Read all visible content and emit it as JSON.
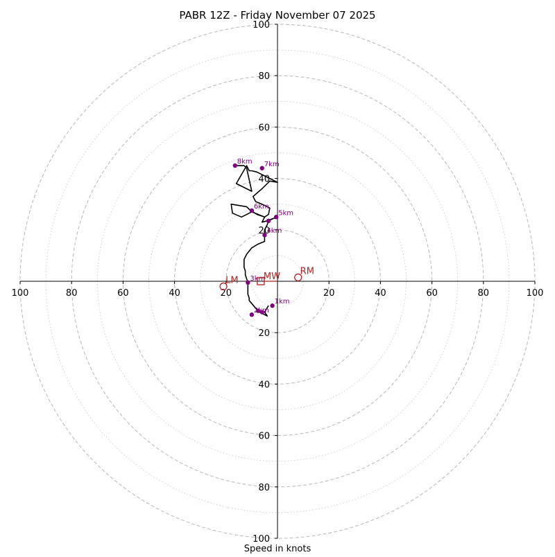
{
  "chart_data": {
    "type": "hodograph",
    "title": "PABR 12Z - Friday November 07 2025",
    "xlabel": "Speed in knots",
    "units": "knots",
    "range": [
      -100,
      100
    ],
    "rings_dashed": [
      20,
      40,
      60,
      80,
      100
    ],
    "rings_dotted": [
      10,
      30,
      50,
      70,
      90
    ],
    "x_tick_labels": [
      {
        "value": -100,
        "label": "100"
      },
      {
        "value": -80,
        "label": "80"
      },
      {
        "value": -60,
        "label": "60"
      },
      {
        "value": -40,
        "label": "40"
      },
      {
        "value": -20,
        "label": "20"
      },
      {
        "value": 20,
        "label": "20"
      },
      {
        "value": 40,
        "label": "40"
      },
      {
        "value": 60,
        "label": "60"
      },
      {
        "value": 80,
        "label": "80"
      },
      {
        "value": 100,
        "label": "100"
      }
    ],
    "y_tick_labels": [
      {
        "value": 100,
        "label": "100"
      },
      {
        "value": 80,
        "label": "80"
      },
      {
        "value": 60,
        "label": "60"
      },
      {
        "value": 40,
        "label": "40"
      },
      {
        "value": 20,
        "label": "20"
      },
      {
        "value": -20,
        "label": "20"
      },
      {
        "value": -40,
        "label": "40"
      },
      {
        "value": -60,
        "label": "60"
      },
      {
        "value": -80,
        "label": "80"
      },
      {
        "value": -100,
        "label": "100"
      }
    ],
    "trace": {
      "color": "#000000",
      "points": [
        [
          -3.5,
          -9.5
        ],
        [
          -5,
          -12
        ],
        [
          -4,
          -13.5
        ],
        [
          -7,
          -12
        ],
        [
          -8,
          -11
        ],
        [
          -11,
          -7.5
        ],
        [
          -11,
          -6.5
        ],
        [
          -11.5,
          -5
        ],
        [
          -11.5,
          -3.5
        ],
        [
          -11.5,
          -2
        ],
        [
          -11.5,
          -0.5
        ],
        [
          -12,
          1
        ],
        [
          -12.5,
          2.5
        ],
        [
          -12.5,
          4
        ],
        [
          -13,
          5.5
        ],
        [
          -13,
          7
        ],
        [
          -13,
          8.5
        ],
        [
          -12,
          10.5
        ],
        [
          -10,
          13
        ],
        [
          -7.5,
          14.5
        ],
        [
          -5,
          15.5
        ],
        [
          -5,
          17
        ],
        [
          -5,
          18.5
        ],
        [
          -5,
          20
        ],
        [
          -4,
          22
        ],
        [
          -3.5,
          23.5
        ],
        [
          -1.5,
          24.5
        ],
        [
          0,
          24.5
        ],
        [
          -1.5,
          24.5
        ],
        [
          -4,
          23.5
        ],
        [
          -6,
          23
        ],
        [
          -5,
          25
        ],
        [
          -10,
          27
        ],
        [
          -14,
          25
        ],
        [
          -17.5,
          26.5
        ],
        [
          -18,
          30
        ],
        [
          -12,
          29
        ],
        [
          -11,
          28
        ],
        [
          -8,
          26
        ],
        [
          -5,
          25
        ],
        [
          -3.5,
          26
        ],
        [
          -3,
          28.5
        ],
        [
          -6,
          30
        ],
        [
          -8.5,
          31
        ],
        [
          -9.5,
          33
        ],
        [
          -6,
          36
        ],
        [
          -3,
          39
        ],
        [
          0,
          38.5
        ],
        [
          -3,
          40
        ],
        [
          -5,
          41
        ],
        [
          -8,
          42.5
        ],
        [
          -10,
          43
        ],
        [
          -11,
          43
        ],
        [
          -12,
          45
        ],
        [
          -16,
          38
        ],
        [
          -10,
          35
        ],
        [
          -12,
          44
        ],
        [
          -13,
          45
        ],
        [
          -16.5,
          45
        ]
      ]
    },
    "height_markers": [
      {
        "label": "1km",
        "u": -2,
        "v": -9.5
      },
      {
        "label": "2km",
        "u": -10,
        "v": -13
      },
      {
        "label": "3km",
        "u": -11.5,
        "v": -0.5
      },
      {
        "label": "4km",
        "u": -5,
        "v": 18
      },
      {
        "label": "5km",
        "u": -0.5,
        "v": 25
      },
      {
        "label": "6km",
        "u": -10,
        "v": 27.5
      },
      {
        "label": "7km",
        "u": -6,
        "v": 44
      },
      {
        "label": "8km",
        "u": -16.5,
        "v": 45
      },
      {
        "label": "",
        "u": -3.5,
        "v": 23.5
      },
      {
        "label": "",
        "u": -6,
        "v": -12
      },
      {
        "label": "",
        "u": -7.5,
        "v": -11.5
      }
    ],
    "height_marker_color": "#800080",
    "storm_motions": {
      "color": "#b22222",
      "RM": {
        "label": "RM",
        "u": 8,
        "v": 1.5,
        "marker": "circle"
      },
      "LM": {
        "label": "LM",
        "u": -21,
        "v": -2,
        "marker": "circle"
      },
      "MW": {
        "label": "MW",
        "u": -6.5,
        "v": 0,
        "marker": "square"
      }
    }
  }
}
